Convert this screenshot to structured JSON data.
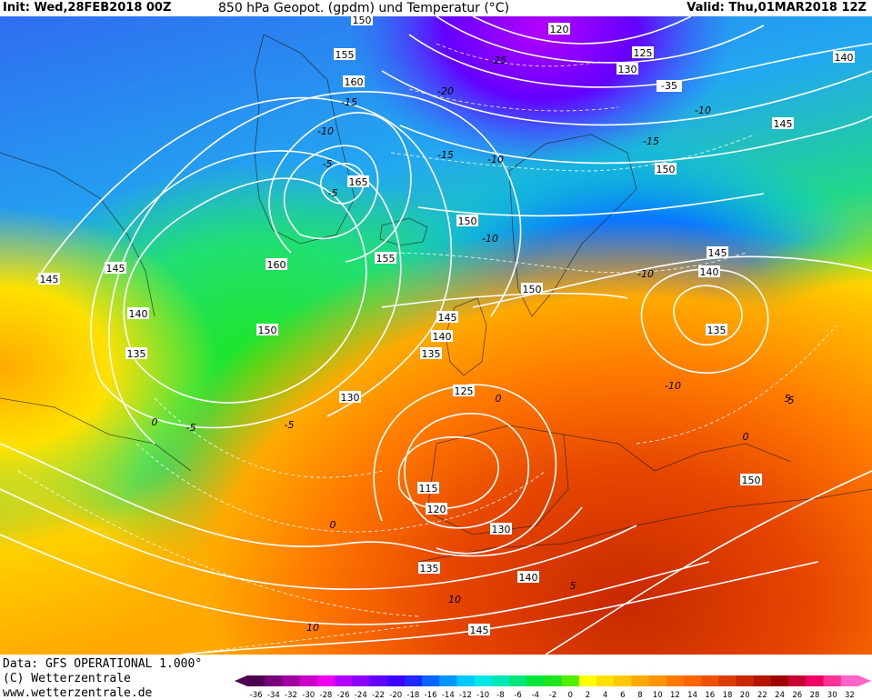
{
  "header": {
    "init": "Init: Wed,28FEB2018 00Z",
    "title": "850 hPa Geopot. (gpdm) und Temperatur (°C)",
    "valid": "Valid: Thu,01MAR2018 12Z"
  },
  "footer": {
    "data_source": "Data: GFS OPERATIONAL 1.000°",
    "copyright": "(C) Wetterzentrale",
    "url": "www.wetterzentrale.de"
  },
  "colorbar": {
    "labels": [
      "-36",
      "-34",
      "-32",
      "-30",
      "-28",
      "-26",
      "-24",
      "-22",
      "-20",
      "-18",
      "-16",
      "-14",
      "-12",
      "-10",
      "-8",
      "-6",
      "-4",
      "-2",
      "0",
      "2",
      "4",
      "6",
      "8",
      "10",
      "12",
      "14",
      "16",
      "18",
      "20",
      "22",
      "24",
      "26",
      "28",
      "30",
      "32"
    ],
    "colors": [
      "#500050",
      "#780078",
      "#a000a0",
      "#c800c8",
      "#f000f0",
      "#b400ff",
      "#8c00ff",
      "#6400ff",
      "#3c00ff",
      "#1e28ff",
      "#0a64ff",
      "#0096ff",
      "#00c8ff",
      "#00e6e6",
      "#00e6b4",
      "#00e678",
      "#00e63c",
      "#1ee61e",
      "#50f000",
      "#ffff00",
      "#ffe100",
      "#ffc800",
      "#ffaa00",
      "#ff9600",
      "#ff7800",
      "#ff6400",
      "#f05000",
      "#dc3c00",
      "#c82800",
      "#b41400",
      "#a00000",
      "#c80032",
      "#f00064",
      "#ff3296",
      "#ff64c8"
    ]
  },
  "isohypse_labels": [
    "150",
    "120",
    "125",
    "130",
    "155",
    "160",
    "135",
    "140",
    "145",
    "150",
    "165",
    "150",
    "155",
    "160",
    "145",
    "150",
    "145",
    "140",
    "150",
    "135",
    "140",
    "145",
    "135",
    "130",
    "125",
    "115",
    "120",
    "130",
    "135",
    "140",
    "145",
    "150",
    "140",
    "145"
  ],
  "isotherm_labels": [
    "-25",
    "-20",
    "-15",
    "-10",
    "-5",
    "-5",
    "-15",
    "-10",
    "-15",
    "-10",
    "-10",
    "-10",
    "-5",
    "0",
    "0",
    "5",
    "0",
    "-5",
    "0",
    "5",
    "10",
    "10",
    "-35",
    "-10",
    "5"
  ]
}
